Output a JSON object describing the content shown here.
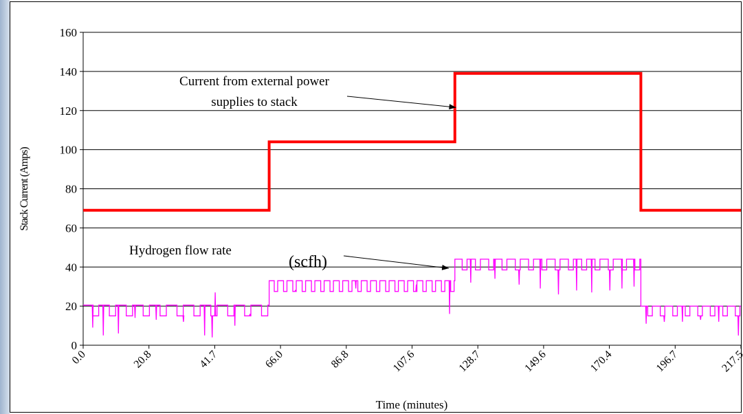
{
  "chart_data": {
    "type": "line",
    "xlabel": "Time (minutes)",
    "ylabel": "Stack Current (Amps)",
    "xlim": [
      0,
      217.5
    ],
    "ylim": [
      0,
      160
    ],
    "x_tick_labels": [
      "0.0",
      "20.8",
      "41.7",
      "66.0",
      "86.8",
      "107.6",
      "128.7",
      "149.6",
      "170.4",
      "196.7",
      "217.5"
    ],
    "y_ticks": [
      0,
      20,
      40,
      60,
      80,
      100,
      120,
      140,
      160
    ],
    "grid": "horizontal",
    "annotations": [
      {
        "lines": [
          "Current from external power",
          "supplies to stack"
        ],
        "arrow_to": [
          122.4,
          123
        ]
      },
      {
        "text": "Hydrogen flow rate",
        "arrow_to": [
          121.4,
          39
        ]
      },
      {
        "text": "(scfh)"
      }
    ],
    "series": [
      {
        "color": "#ff0000",
        "x": [
          0,
          61.5,
          61.5,
          122.9,
          122.9,
          184.4,
          184.4,
          217.5
        ],
        "y": [
          69,
          69,
          104,
          104,
          139,
          139,
          69,
          69
        ]
      },
      {
        "color": "#ff00ff",
        "segments": [
          {
            "x0": 0,
            "x1": 61.5,
            "high": 20.5,
            "low": 15,
            "pulses": 11,
            "spikes": [
              [
                3.0,
                9
              ],
              [
                6.5,
                5
              ],
              [
                11.5,
                6
              ],
              [
                17.0,
                14
              ],
              [
                24.0,
                13
              ],
              [
                33.0,
                12
              ],
              [
                40.0,
                5
              ],
              [
                42.5,
                4
              ],
              [
                43.5,
                27
              ],
              [
                50.0,
                10
              ],
              [
                55.0,
                16
              ]
            ]
          },
          {
            "x0": 61.5,
            "x1": 122.9,
            "high": 33,
            "low": 27.5,
            "pulses": 20,
            "spikes": [
              [
                70.0,
                28
              ],
              [
                90.0,
                29
              ],
              [
                110.0,
                31
              ],
              [
                121.0,
                16
              ]
            ]
          },
          {
            "x0": 122.9,
            "x1": 184.4,
            "high": 44,
            "low": 38.5,
            "pulses": 14,
            "spikes": [
              [
                128.0,
                32
              ],
              [
                136.0,
                34
              ],
              [
                144.0,
                31
              ],
              [
                151.0,
                29
              ],
              [
                157.0,
                26
              ],
              [
                163.0,
                28
              ],
              [
                168.0,
                27
              ],
              [
                174.0,
                28
              ],
              [
                178.0,
                29
              ],
              [
                182.0,
                30
              ]
            ]
          },
          {
            "x0": 184.4,
            "x1": 217.5,
            "high": 20,
            "low": 15,
            "pulses": 8,
            "spikes": [
              [
                186.0,
                11
              ],
              [
                192.0,
                12
              ],
              [
                198.0,
                12
              ],
              [
                204.0,
                13
              ],
              [
                210.0,
                12
              ],
              [
                216.5,
                5
              ]
            ]
          }
        ]
      }
    ]
  }
}
